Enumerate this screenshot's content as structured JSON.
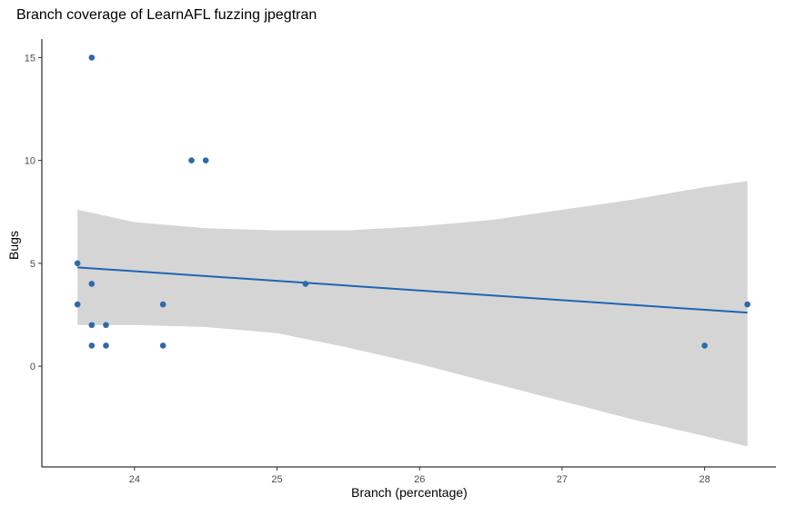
{
  "chart_data": {
    "type": "scatter",
    "title": "Branch coverage of LearnAFL fuzzing jpegtran",
    "xlabel": "Branch (percentage)",
    "ylabel": "Bugs",
    "xlim": [
      23.35,
      28.5
    ],
    "ylim": [
      -4.9,
      15.9
    ],
    "x_ticks": [
      24,
      25,
      26,
      27,
      28
    ],
    "y_ticks": [
      0,
      5,
      10,
      15
    ],
    "grid": false,
    "point_color": "#2e6aa8",
    "line_color": "#1f64b5",
    "band_color": "#d5d5d5",
    "points": [
      {
        "x": 23.6,
        "y": 5
      },
      {
        "x": 23.6,
        "y": 3
      },
      {
        "x": 23.7,
        "y": 15
      },
      {
        "x": 23.7,
        "y": 4
      },
      {
        "x": 23.7,
        "y": 2
      },
      {
        "x": 23.7,
        "y": 1
      },
      {
        "x": 23.8,
        "y": 2
      },
      {
        "x": 23.8,
        "y": 1
      },
      {
        "x": 24.2,
        "y": 3
      },
      {
        "x": 24.2,
        "y": 1
      },
      {
        "x": 24.4,
        "y": 10
      },
      {
        "x": 24.5,
        "y": 10
      },
      {
        "x": 25.2,
        "y": 4
      },
      {
        "x": 28.0,
        "y": 1
      },
      {
        "x": 28.3,
        "y": 3
      }
    ],
    "fit_line": [
      {
        "x": 23.6,
        "y": 4.8
      },
      {
        "x": 28.3,
        "y": 2.6
      }
    ],
    "confidence_band": {
      "x": [
        23.6,
        24.0,
        24.5,
        25.0,
        25.5,
        26.0,
        26.5,
        27.0,
        27.5,
        28.0,
        28.3
      ],
      "upper": [
        7.6,
        7.0,
        6.7,
        6.6,
        6.6,
        6.8,
        7.1,
        7.6,
        8.1,
        8.7,
        9.0
      ],
      "lower": [
        2.0,
        2.0,
        1.9,
        1.6,
        0.9,
        0.1,
        -0.8,
        -1.7,
        -2.6,
        -3.4,
        -3.9
      ]
    }
  }
}
